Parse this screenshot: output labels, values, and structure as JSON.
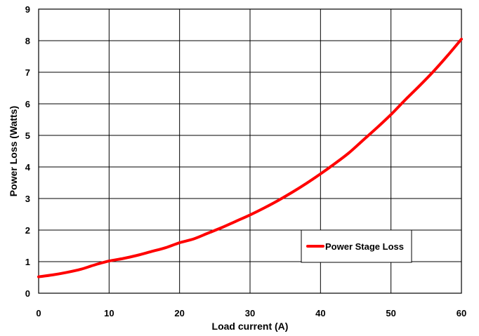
{
  "chart_data": {
    "type": "line",
    "title": "",
    "xlabel": "Load current (A)",
    "ylabel": "Power Loss (Watts)",
    "xlim": [
      0,
      60
    ],
    "ylim": [
      0,
      9
    ],
    "x_ticks": [
      "0",
      "10",
      "20",
      "30",
      "40",
      "50",
      "60"
    ],
    "y_ticks": [
      "0",
      "1",
      "2",
      "3",
      "4",
      "5",
      "6",
      "7",
      "8",
      "9"
    ],
    "grid": true,
    "legend_position": "lower-right",
    "series": [
      {
        "name": "Power Stage Loss",
        "color": "#ff0000",
        "x": [
          0,
          2,
          4,
          6,
          8,
          10,
          12,
          14,
          16,
          18,
          20,
          22,
          24,
          26,
          28,
          30,
          32,
          34,
          36,
          38,
          40,
          42,
          44,
          46,
          48,
          50,
          52,
          54,
          56,
          58,
          60
        ],
        "y": [
          0.52,
          0.58,
          0.66,
          0.76,
          0.9,
          1.02,
          1.1,
          1.2,
          1.32,
          1.44,
          1.6,
          1.72,
          1.9,
          2.08,
          2.28,
          2.48,
          2.7,
          2.94,
          3.2,
          3.48,
          3.78,
          4.1,
          4.44,
          4.84,
          5.24,
          5.66,
          6.12,
          6.56,
          7.02,
          7.52,
          8.05
        ]
      }
    ]
  }
}
